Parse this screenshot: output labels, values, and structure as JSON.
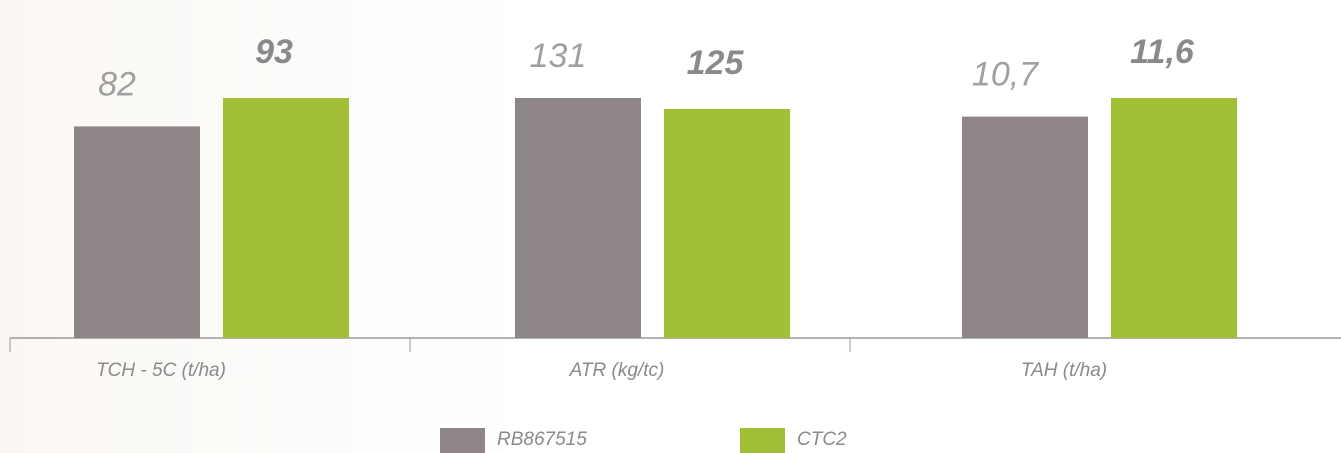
{
  "chart_data": {
    "type": "bar",
    "categories": [
      "TCH - 5C (t/ha)",
      "ATR (kg/tc)",
      "TAH (t/ha)"
    ],
    "series": [
      {
        "name": "RB867515",
        "color": "#8e8587",
        "values": [
          82,
          131,
          10.7
        ],
        "value_labels": [
          "82",
          "131",
          "10,7"
        ]
      },
      {
        "name": "CTC2",
        "color": "#a2c037",
        "values": [
          93,
          125,
          11.6
        ],
        "value_labels": [
          "93",
          "125",
          "11,6"
        ]
      }
    ]
  }
}
